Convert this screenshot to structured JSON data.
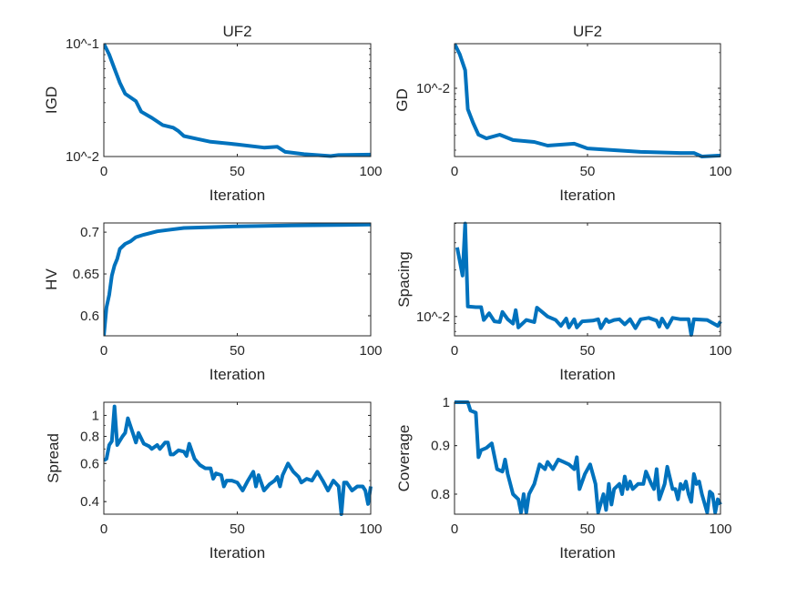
{
  "chart_data": [
    {
      "type": "line",
      "title": "UF2",
      "xlabel": "Iteration",
      "ylabel": "IGD",
      "yscale": "log",
      "xlim": [
        0,
        100
      ],
      "ylim": [
        0.01,
        0.1
      ],
      "xticks": [
        0,
        50,
        100
      ],
      "xtick_labels": [
        "0",
        "50",
        "100"
      ],
      "yticks": [
        0.01,
        0.1
      ],
      "ytick_labels": [
        "10^-2",
        "10^-1"
      ],
      "color": "#0072BD",
      "x": [
        0,
        2,
        4,
        6,
        8,
        12,
        14,
        18,
        22,
        26,
        28,
        30,
        35,
        40,
        50,
        60,
        65,
        68,
        75,
        85,
        88,
        100
      ],
      "y": [
        0.1,
        0.08,
        0.06,
        0.045,
        0.036,
        0.031,
        0.025,
        0.022,
        0.019,
        0.018,
        0.0168,
        0.0152,
        0.0143,
        0.0135,
        0.0128,
        0.012,
        0.0122,
        0.011,
        0.0105,
        0.0101,
        0.0103,
        0.0104
      ]
    },
    {
      "type": "line",
      "title": "UF2",
      "xlabel": "Iteration",
      "ylabel": "GD",
      "yscale": "log",
      "xlim": [
        0,
        100
      ],
      "ylim": [
        0.00265,
        0.0238
      ],
      "xticks": [
        0,
        50,
        100
      ],
      "xtick_labels": [
        "0",
        "50",
        "100"
      ],
      "yticks": [
        0.01
      ],
      "ytick_labels": [
        "10^-2"
      ],
      "color": "#0072BD",
      "x": [
        0,
        2,
        4,
        5,
        7,
        9,
        12,
        17,
        22,
        30,
        35,
        45,
        50,
        60,
        70,
        85,
        90,
        93,
        100
      ],
      "y": [
        0.0238,
        0.0193,
        0.0142,
        0.00665,
        0.0051,
        0.00405,
        0.00377,
        0.00405,
        0.00365,
        0.00352,
        0.00328,
        0.0034,
        0.0031,
        0.003,
        0.0029,
        0.00284,
        0.00284,
        0.00265,
        0.0027
      ]
    },
    {
      "type": "line",
      "title": "",
      "xlabel": "Iteration",
      "ylabel": "HV",
      "yscale": "linear",
      "xlim": [
        0,
        100
      ],
      "ylim": [
        0.576,
        0.711
      ],
      "xticks": [
        0,
        50,
        100
      ],
      "xtick_labels": [
        "0",
        "50",
        "100"
      ],
      "yticks": [
        0.6,
        0.65,
        0.7
      ],
      "ytick_labels": [
        "0.6",
        "0.65",
        "0.7"
      ],
      "color": "#0072BD",
      "x": [
        0,
        1,
        2,
        3,
        4,
        5,
        6,
        8,
        10,
        12,
        15,
        20,
        25,
        30,
        40,
        50,
        70,
        100
      ],
      "y": [
        0.576,
        0.61,
        0.625,
        0.648,
        0.66,
        0.668,
        0.68,
        0.686,
        0.689,
        0.694,
        0.697,
        0.701,
        0.703,
        0.705,
        0.706,
        0.707,
        0.708,
        0.709
      ]
    },
    {
      "type": "line",
      "title": "",
      "xlabel": "Iteration",
      "ylabel": "Spacing",
      "yscale": "log",
      "xlim": [
        0,
        100
      ],
      "ylim": [
        0.0075,
        0.0403
      ],
      "xticks": [
        0,
        50,
        100
      ],
      "xtick_labels": [
        "0",
        "50",
        "100"
      ],
      "yticks": [
        0.01
      ],
      "ytick_labels": [
        "10^-2"
      ],
      "color": "#0072BD",
      "x": [
        1,
        3,
        4,
        5,
        8,
        10,
        11,
        13,
        15,
        17,
        18,
        20,
        22,
        23,
        24,
        27,
        30,
        31,
        35,
        38,
        40,
        42,
        43,
        45,
        46,
        48,
        52,
        54,
        55,
        57,
        58,
        60,
        62,
        64,
        66,
        68,
        70,
        73,
        76,
        77,
        78,
        80,
        82,
        85,
        88,
        89,
        90,
        95,
        99,
        100
      ],
      "y": [
        0.028,
        0.0184,
        0.04,
        0.0116,
        0.0115,
        0.0115,
        0.0095,
        0.0105,
        0.0093,
        0.0092,
        0.0107,
        0.0096,
        0.009,
        0.011,
        0.0085,
        0.0095,
        0.0092,
        0.0114,
        0.01,
        0.0095,
        0.0087,
        0.0097,
        0.0085,
        0.0096,
        0.0085,
        0.0093,
        0.0094,
        0.0096,
        0.0084,
        0.0096,
        0.0092,
        0.0095,
        0.0096,
        0.0089,
        0.0096,
        0.0084,
        0.0096,
        0.0098,
        0.0094,
        0.0086,
        0.0097,
        0.0085,
        0.0098,
        0.0096,
        0.0096,
        0.0076,
        0.0096,
        0.0095,
        0.0087,
        0.0093
      ]
    },
    {
      "type": "line",
      "title": "",
      "xlabel": "Iteration",
      "ylabel": "Spread",
      "yscale": "log",
      "xlim": [
        0,
        100
      ],
      "ylim": [
        0.35,
        1.15
      ],
      "xticks": [
        0,
        50,
        100
      ],
      "xtick_labels": [
        "0",
        "50",
        "100"
      ],
      "yticks": [
        0.4,
        0.6,
        0.8,
        1
      ],
      "ytick_labels": [
        "0.4",
        "0.6",
        "0.8",
        "1"
      ],
      "color": "#0072BD",
      "x": [
        0,
        1,
        2,
        3,
        4,
        5,
        7,
        8,
        9,
        11,
        12,
        13,
        15,
        17,
        18,
        20,
        21,
        23,
        24,
        25,
        26,
        28,
        30,
        31,
        32,
        34,
        36,
        38,
        40,
        41,
        42,
        44,
        45,
        46,
        48,
        50,
        52,
        54,
        56,
        57,
        58,
        60,
        62,
        64,
        65,
        66,
        67,
        69,
        71,
        73,
        74,
        76,
        78,
        80,
        82,
        84,
        86,
        88,
        89,
        90,
        91,
        93,
        95,
        97,
        98,
        99,
        100
      ],
      "y": [
        0.62,
        0.63,
        0.73,
        0.76,
        1.1,
        0.73,
        0.8,
        0.83,
        0.97,
        0.82,
        0.75,
        0.83,
        0.74,
        0.72,
        0.7,
        0.73,
        0.7,
        0.75,
        0.75,
        0.66,
        0.66,
        0.69,
        0.68,
        0.65,
        0.74,
        0.63,
        0.59,
        0.57,
        0.57,
        0.51,
        0.54,
        0.53,
        0.47,
        0.5,
        0.5,
        0.49,
        0.45,
        0.5,
        0.55,
        0.47,
        0.53,
        0.45,
        0.48,
        0.5,
        0.52,
        0.47,
        0.53,
        0.6,
        0.55,
        0.52,
        0.49,
        0.51,
        0.5,
        0.55,
        0.5,
        0.45,
        0.5,
        0.47,
        0.35,
        0.49,
        0.49,
        0.45,
        0.47,
        0.47,
        0.45,
        0.39,
        0.47
      ]
    },
    {
      "type": "line",
      "title": "",
      "xlabel": "Iteration",
      "ylabel": "Coverage",
      "yscale": "log",
      "xlim": [
        0,
        100
      ],
      "ylim": [
        0.762,
        1.0
      ],
      "xticks": [
        0,
        50,
        100
      ],
      "xtick_labels": [
        "0",
        "50",
        "100"
      ],
      "yticks": [
        0.8,
        0.9,
        1
      ],
      "ytick_labels": [
        "0.8",
        "0.9",
        "1"
      ],
      "color": "#0072BD",
      "x": [
        0,
        5,
        6,
        8,
        9,
        10,
        12,
        14,
        16,
        18,
        19,
        20,
        22,
        24,
        25,
        26,
        27,
        28,
        30,
        32,
        34,
        35,
        37,
        39,
        41,
        43,
        45,
        46,
        47,
        49,
        51,
        53,
        54,
        56,
        57,
        58,
        59,
        60,
        62,
        63,
        64,
        65,
        66,
        67,
        69,
        71,
        72,
        74,
        75,
        76,
        77,
        79,
        80,
        82,
        83,
        84,
        85,
        86,
        87,
        88,
        89,
        90,
        91,
        92,
        93,
        95,
        96,
        97,
        98,
        99,
        100
      ],
      "y": [
        1.0,
        1.0,
        0.98,
        0.975,
        0.875,
        0.89,
        0.895,
        0.905,
        0.85,
        0.845,
        0.87,
        0.84,
        0.8,
        0.79,
        0.765,
        0.8,
        0.765,
        0.8,
        0.82,
        0.86,
        0.85,
        0.865,
        0.85,
        0.87,
        0.865,
        0.86,
        0.85,
        0.875,
        0.81,
        0.84,
        0.86,
        0.82,
        0.765,
        0.8,
        0.77,
        0.82,
        0.78,
        0.81,
        0.82,
        0.8,
        0.835,
        0.81,
        0.825,
        0.81,
        0.82,
        0.82,
        0.845,
        0.82,
        0.81,
        0.85,
        0.79,
        0.82,
        0.855,
        0.81,
        0.81,
        0.79,
        0.82,
        0.81,
        0.825,
        0.8,
        0.785,
        0.84,
        0.82,
        0.825,
        0.8,
        0.765,
        0.805,
        0.8,
        0.765,
        0.79,
        0.78
      ]
    }
  ]
}
